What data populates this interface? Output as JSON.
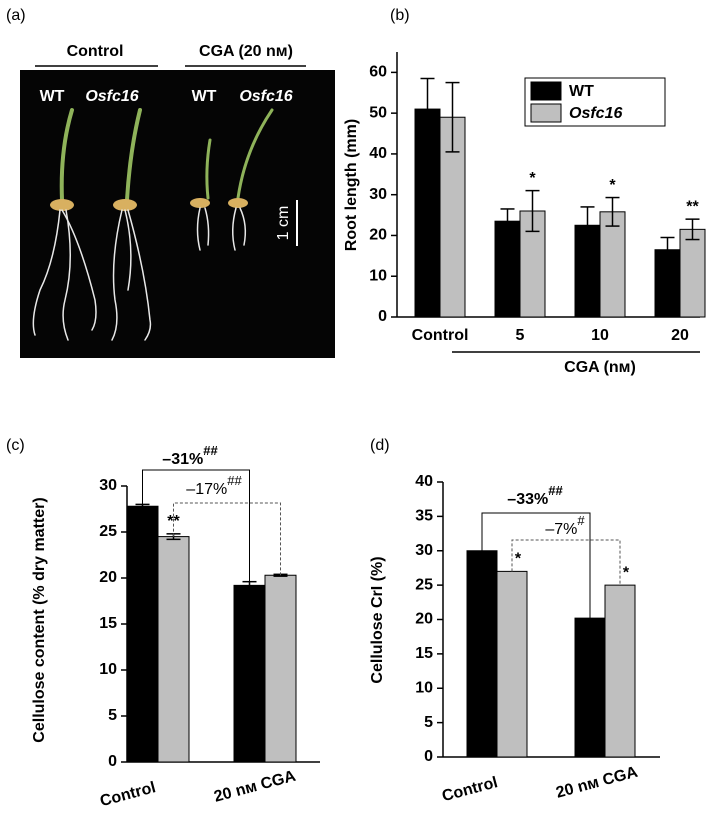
{
  "photo": {
    "panel": "(a)",
    "groups": [
      "Control",
      "CGA (20 nм)"
    ],
    "labels": [
      "WT",
      "Osfc16",
      "WT",
      "Osfc16"
    ],
    "scale_bar": "1 cm"
  },
  "chart_data": [
    {
      "type": "bar",
      "panel": "(b)",
      "ylabel": "Root length (mm)",
      "xlabel": "CGA (nм)",
      "categories": [
        "Control",
        "5",
        "10",
        "20"
      ],
      "series": [
        {
          "name": "WT",
          "color": "#000000",
          "values": [
            51,
            23.5,
            22.5,
            16.5
          ],
          "errors": [
            7.5,
            3,
            4.5,
            3
          ],
          "annotations": [
            null,
            null,
            null,
            null
          ]
        },
        {
          "name": "Osfc16",
          "color": "#bfbfbf",
          "values": [
            49,
            26,
            25.8,
            21.5
          ],
          "errors": [
            8.5,
            5,
            3.5,
            2.5
          ],
          "annotations": [
            null,
            "*",
            "*",
            "**"
          ]
        }
      ],
      "ylim": [
        0,
        65
      ],
      "yticks": [
        0,
        10,
        20,
        30,
        40,
        50,
        60
      ],
      "legend": "top-right"
    },
    {
      "type": "bar",
      "panel": "(c)",
      "ylabel": "Cellulose content (% dry matter)",
      "categories": [
        "Control",
        "20 nм CGA"
      ],
      "series": [
        {
          "color": "#000000",
          "values": [
            27.8,
            19.2
          ],
          "errors": [
            0.2,
            0.4
          ],
          "annotations": [
            null,
            null
          ]
        },
        {
          "color": "#bfbfbf",
          "values": [
            24.5,
            20.3
          ],
          "errors": [
            0.3,
            0.1
          ],
          "annotations": [
            "**",
            null
          ]
        }
      ],
      "brackets": [
        {
          "label": "–31%",
          "sup": "##",
          "style": "solid"
        },
        {
          "label": "–17%",
          "sup": "##",
          "style": "dashed"
        }
      ],
      "ylim": [
        0,
        30
      ],
      "yticks": [
        0,
        5,
        10,
        15,
        20,
        25,
        30
      ]
    },
    {
      "type": "bar",
      "panel": "(d)",
      "ylabel": "Cellulose CrI (%)",
      "categories": [
        "Control",
        "20 nм CGA"
      ],
      "series": [
        {
          "color": "#000000",
          "values": [
            30,
            20.2
          ],
          "annotations": [
            null,
            null
          ]
        },
        {
          "color": "#bfbfbf",
          "values": [
            27,
            25
          ],
          "annotations": [
            "*",
            "*"
          ]
        }
      ],
      "brackets": [
        {
          "label": "–33%",
          "sup": "##",
          "style": "solid"
        },
        {
          "label": "–7%",
          "sup": "#",
          "style": "dashed"
        }
      ],
      "ylim": [
        0,
        40
      ],
      "yticks": [
        0,
        5,
        10,
        15,
        20,
        25,
        30,
        35,
        40
      ]
    }
  ]
}
